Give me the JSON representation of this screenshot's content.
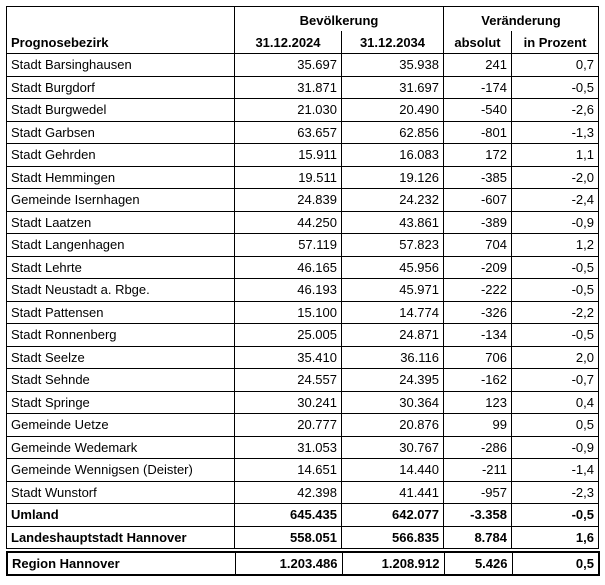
{
  "header": {
    "groups": [
      "Bevölkerung",
      "Veränderung"
    ],
    "columns": [
      "Prognosebezirk",
      "31.12.2024",
      "31.12.2034",
      "absolut",
      "in Prozent"
    ]
  },
  "rows": [
    [
      "Stadt Barsinghausen",
      "35.697",
      "35.938",
      "241",
      "0,7"
    ],
    [
      "Stadt Burgdorf",
      "31.871",
      "31.697",
      "-174",
      "-0,5"
    ],
    [
      "Stadt Burgwedel",
      "21.030",
      "20.490",
      "-540",
      "-2,6"
    ],
    [
      "Stadt Garbsen",
      "63.657",
      "62.856",
      "-801",
      "-1,3"
    ],
    [
      "Stadt Gehrden",
      "15.911",
      "16.083",
      "172",
      "1,1"
    ],
    [
      "Stadt Hemmingen",
      "19.511",
      "19.126",
      "-385",
      "-2,0"
    ],
    [
      "Gemeinde Isernhagen",
      "24.839",
      "24.232",
      "-607",
      "-2,4"
    ],
    [
      "Stadt Laatzen",
      "44.250",
      "43.861",
      "-389",
      "-0,9"
    ],
    [
      "Stadt Langenhagen",
      "57.119",
      "57.823",
      "704",
      "1,2"
    ],
    [
      "Stadt Lehrte",
      "46.165",
      "45.956",
      "-209",
      "-0,5"
    ],
    [
      "Stadt Neustadt a. Rbge.",
      "46.193",
      "45.971",
      "-222",
      "-0,5"
    ],
    [
      "Stadt Pattensen",
      "15.100",
      "14.774",
      "-326",
      "-2,2"
    ],
    [
      "Stadt Ronnenberg",
      "25.005",
      "24.871",
      "-134",
      "-0,5"
    ],
    [
      "Stadt Seelze",
      "35.410",
      "36.116",
      "706",
      "2,0"
    ],
    [
      "Stadt Sehnde",
      "24.557",
      "24.395",
      "-162",
      "-0,7"
    ],
    [
      "Stadt Springe",
      "30.241",
      "30.364",
      "123",
      "0,4"
    ],
    [
      "Gemeinde Uetze",
      "20.777",
      "20.876",
      "99",
      "0,5"
    ],
    [
      "Gemeinde Wedemark",
      "31.053",
      "30.767",
      "-286",
      "-0,9"
    ],
    [
      "Gemeinde Wennigsen (Deister)",
      "14.651",
      "14.440",
      "-211",
      "-1,4"
    ],
    [
      "Stadt Wunstorf",
      "42.398",
      "41.441",
      "-957",
      "-2,3"
    ]
  ],
  "totals": [
    [
      "Umland",
      "645.435",
      "642.077",
      "-3.358",
      "-0,5"
    ],
    [
      "Landeshauptstadt Hannover",
      "558.051",
      "566.835",
      "8.784",
      "1,6"
    ]
  ],
  "region": [
    "Region Hannover",
    "1.203.486",
    "1.208.912",
    "5.426",
    "0,5"
  ]
}
